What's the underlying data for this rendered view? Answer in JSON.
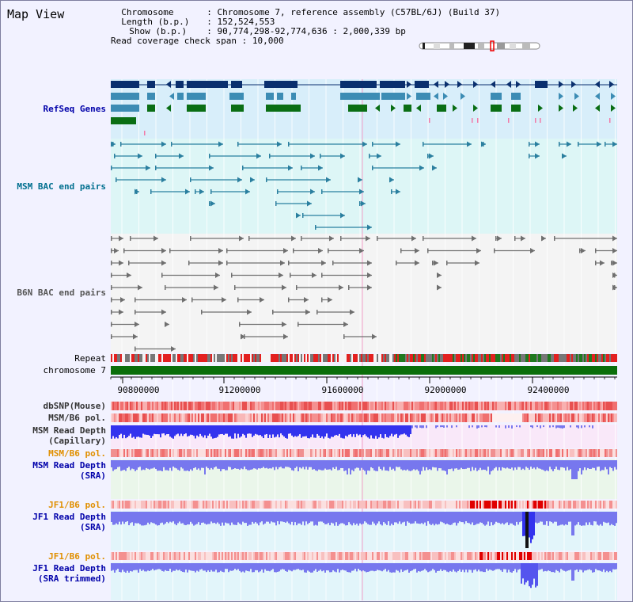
{
  "header": {
    "title": "Map View",
    "info": [
      {
        "key": "Chromosome",
        "value": "Chromosome 7, reference assembly (C57BL/6J) (Build 37)"
      },
      {
        "key": "Length (b.p.)",
        "value": "152,524,553"
      },
      {
        "key": "Show (b.p.)",
        "value": "90,774,298-92,774,636 : 2,000,339 bp"
      },
      {
        "key": "Read coverage check span",
        "value": "10,000"
      }
    ]
  },
  "tracks": [
    {
      "id": "refseq",
      "label": "RefSeq Genes",
      "color": "#0000aa"
    },
    {
      "id": "msm-bac",
      "label": "MSM BAC end pairs",
      "color": "#006f8f"
    },
    {
      "id": "b6n-bac",
      "label": "B6N BAC end pairs",
      "color": "#555555"
    },
    {
      "id": "repeat",
      "label": "Repeat",
      "color": "#000000"
    },
    {
      "id": "chromosome",
      "label": "chromosome 7",
      "color": "#000000"
    },
    {
      "id": "dbsnp",
      "label": "dbSNP(Mouse)",
      "color": "#333333"
    },
    {
      "id": "msm-pol-1",
      "label": "MSM/B6 pol.",
      "color": "#333333"
    },
    {
      "id": "msm-depth-cap",
      "label": "MSM Read Depth\n(Capillary)",
      "color": "#333333"
    },
    {
      "id": "msm-pol-2",
      "label": "MSM/B6 pol.",
      "color": "#e08f00"
    },
    {
      "id": "msm-depth-sra",
      "label": "MSM Read Depth\n(SRA)",
      "color": "#0000aa"
    },
    {
      "id": "jf1-pol-1",
      "label": "JF1/B6 pol.",
      "color": "#e08f00"
    },
    {
      "id": "jf1-depth-sra",
      "label": "JF1 Read Depth\n(SRA)",
      "color": "#0000aa"
    },
    {
      "id": "jf1-pol-2",
      "label": "JF1/B6 pol.",
      "color": "#e08f00"
    },
    {
      "id": "jf1-depth-trim",
      "label": "JF1 Read Depth\n(SRA trimmed)",
      "color": "#0000aa"
    }
  ],
  "ruler": {
    "ticks": [
      "90800000",
      "91200000",
      "91600000",
      "92000000",
      "92400000"
    ]
  },
  "colors": {
    "refseq_dark": "#0a2f6e",
    "refseq_mid": "#3c8cb4",
    "refseq_green": "#0a6e14",
    "msm_pair": "#2a7f9f",
    "b6n_pair": "#6f6f6f",
    "chromosome_bar": "#0a6e0a",
    "depth_blue": "#3333ee",
    "depth_light": "#7777ee"
  }
}
